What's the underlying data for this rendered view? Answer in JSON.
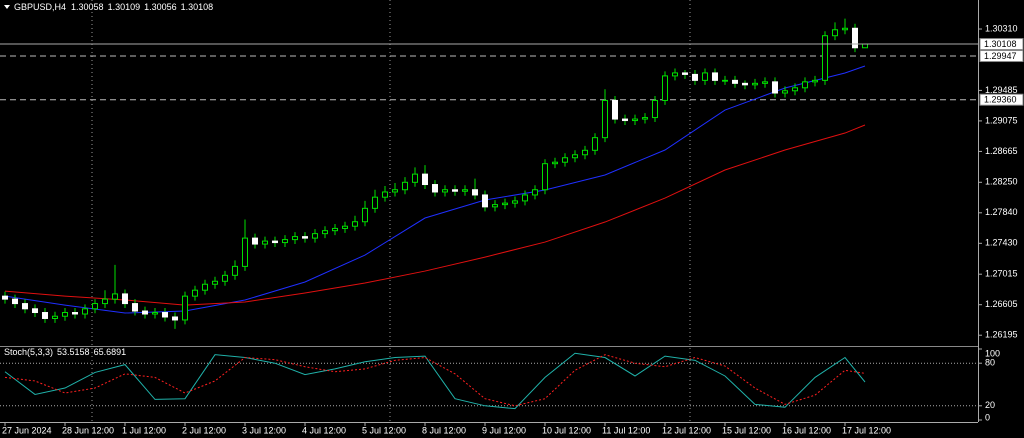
{
  "chart_data": [
    {
      "type": "candlestick",
      "symbol": "GBPUSD,H4",
      "categories": [
        "27 Jun 2024",
        null,
        null,
        null,
        null,
        null,
        "28 Jun 12:00",
        null,
        null,
        null,
        null,
        null,
        "1 Jul 12:00",
        null,
        null,
        null,
        null,
        null,
        "2 Jul 12:00",
        null,
        null,
        null,
        null,
        null,
        "3 Jul 12:00",
        null,
        null,
        null,
        null,
        null,
        "4 Jul 12:00",
        null,
        null,
        null,
        null,
        null,
        "5 Jul 12:00",
        null,
        null,
        null,
        null,
        null,
        "8 Jul 12:00",
        null,
        null,
        null,
        null,
        null,
        "9 Jul 12:00",
        null,
        null,
        null,
        null,
        null,
        "10 Jul 12:00",
        null,
        null,
        null,
        null,
        null,
        "11 Jul 12:00",
        null,
        null,
        null,
        null,
        null,
        "12 Jul 12:00",
        null,
        null,
        null,
        null,
        null,
        "15 Jul 12:00",
        null,
        null,
        null,
        null,
        null,
        "16 Jul 12:00",
        null,
        null,
        null,
        null,
        null,
        "17 Jul 12:00",
        null,
        null
      ],
      "open": [
        1.2672,
        1.2668,
        1.2662,
        1.2655,
        1.265,
        1.2642,
        1.2645,
        1.265,
        1.2648,
        1.2655,
        1.2662,
        1.2668,
        1.2675,
        1.2662,
        1.2652,
        1.2648,
        1.265,
        1.2644,
        1.264,
        1.2672,
        1.268,
        1.2688,
        1.2692,
        1.27,
        1.2712,
        1.275,
        1.2742,
        1.2746,
        1.2744,
        1.2748,
        1.2752,
        1.275,
        1.2756,
        1.276,
        1.2763,
        1.2766,
        1.2772,
        1.279,
        1.2805,
        1.2812,
        1.2815,
        1.2825,
        1.2836,
        1.2822,
        1.2812,
        1.2815,
        1.2813,
        1.2815,
        1.2808,
        1.2792,
        1.2795,
        1.2797,
        1.28,
        1.2808,
        1.2815,
        1.285,
        1.2852,
        1.2858,
        1.2862,
        1.2868,
        1.2885,
        1.2935,
        1.291,
        1.2908,
        1.291,
        1.2912,
        1.2935,
        1.2968,
        1.2972,
        1.297,
        1.2962,
        1.2972,
        1.2962,
        1.2962,
        1.2958,
        1.2956,
        1.2958,
        1.296,
        1.2945,
        1.2948,
        1.2952,
        1.296,
        1.2962,
        1.3022,
        1.303,
        1.3032,
        1.30058
      ],
      "high": [
        1.2678,
        1.2674,
        1.2668,
        1.2661,
        1.2656,
        1.2651,
        1.2656,
        1.2656,
        1.2661,
        1.2668,
        1.268,
        1.2714,
        1.2681,
        1.2668,
        1.2658,
        1.2656,
        1.2656,
        1.265,
        1.2678,
        1.2686,
        1.2694,
        1.2698,
        1.2706,
        1.272,
        1.2775,
        1.2756,
        1.2752,
        1.2752,
        1.2754,
        1.2758,
        1.2758,
        1.2762,
        1.2766,
        1.2769,
        1.2772,
        1.278,
        1.28,
        1.2815,
        1.282,
        1.2824,
        1.2832,
        1.2845,
        1.2848,
        1.2828,
        1.2821,
        1.2821,
        1.2821,
        1.283,
        1.2814,
        1.2801,
        1.2803,
        1.2806,
        1.2814,
        1.2821,
        1.2856,
        1.2858,
        1.2864,
        1.2868,
        1.2874,
        1.2891,
        1.295,
        1.2941,
        1.2916,
        1.2916,
        1.2918,
        1.2941,
        1.2974,
        1.2978,
        1.2976,
        1.2976,
        1.2978,
        1.2978,
        1.2968,
        1.2968,
        1.2962,
        1.2964,
        1.2966,
        1.2966,
        1.2954,
        1.2958,
        1.2966,
        1.2968,
        1.3028,
        1.304,
        1.3045,
        1.3038,
        1.30109
      ],
      "low": [
        1.2662,
        1.2656,
        1.2649,
        1.2644,
        1.2636,
        1.2636,
        1.2639,
        1.2642,
        1.2642,
        1.2649,
        1.2656,
        1.2662,
        1.2656,
        1.2646,
        1.2642,
        1.2642,
        1.2638,
        1.2628,
        1.2634,
        1.2666,
        1.2674,
        1.2682,
        1.2686,
        1.2694,
        1.2706,
        1.2736,
        1.2736,
        1.2738,
        1.2738,
        1.2742,
        1.2744,
        1.2744,
        1.275,
        1.2754,
        1.2757,
        1.276,
        1.2766,
        1.2784,
        1.2799,
        1.2806,
        1.2809,
        1.2819,
        1.2816,
        1.2806,
        1.2806,
        1.2807,
        1.2807,
        1.2802,
        1.2786,
        1.2786,
        1.2789,
        1.2791,
        1.2794,
        1.2802,
        1.2809,
        1.2844,
        1.2846,
        1.2852,
        1.2856,
        1.2862,
        1.2879,
        1.2904,
        1.2902,
        1.2902,
        1.2904,
        1.2906,
        1.2929,
        1.2962,
        1.2964,
        1.2956,
        1.2956,
        1.2956,
        1.2956,
        1.2952,
        1.295,
        1.295,
        1.2952,
        1.2939,
        1.2939,
        1.2942,
        1.2946,
        1.2954,
        1.2956,
        1.3016,
        1.3024,
        1.3,
        1.30056
      ],
      "close": [
        1.2668,
        1.2662,
        1.2655,
        1.265,
        1.2642,
        1.2645,
        1.265,
        1.2648,
        1.2655,
        1.2662,
        1.2668,
        1.2675,
        1.2662,
        1.2652,
        1.2648,
        1.265,
        1.2644,
        1.264,
        1.2672,
        1.268,
        1.2688,
        1.2692,
        1.27,
        1.2712,
        1.275,
        1.2742,
        1.2746,
        1.2744,
        1.2748,
        1.2752,
        1.275,
        1.2756,
        1.276,
        1.2763,
        1.2766,
        1.2772,
        1.279,
        1.2805,
        1.2812,
        1.2815,
        1.2825,
        1.2836,
        1.2822,
        1.2812,
        1.2815,
        1.2813,
        1.2815,
        1.2808,
        1.2792,
        1.2795,
        1.2797,
        1.28,
        1.2808,
        1.2815,
        1.285,
        1.2852,
        1.2858,
        1.2862,
        1.2868,
        1.2885,
        1.2935,
        1.291,
        1.2908,
        1.291,
        1.2912,
        1.2935,
        1.2968,
        1.2972,
        1.297,
        1.2962,
        1.2972,
        1.2962,
        1.2962,
        1.2958,
        1.2956,
        1.2958,
        1.296,
        1.2945,
        1.2948,
        1.2952,
        1.296,
        1.2962,
        1.3022,
        1.303,
        1.3032,
        1.30058,
        1.30108
      ],
      "up_color": "#00e000",
      "down_color": "#ffffff",
      "series": [
        {
          "color": "#1f2fff",
          "x": [
            0,
            6,
            12,
            18,
            24,
            30,
            36,
            42,
            48,
            54,
            60,
            66,
            72,
            78,
            84,
            86
          ],
          "values": [
            1.26721,
            1.266,
            1.26493,
            1.2652,
            1.26668,
            1.2691,
            1.27272,
            1.2777,
            1.28012,
            1.28146,
            1.28348,
            1.28684,
            1.29221,
            1.29517,
            1.29719,
            1.29813
          ]
        },
        {
          "color": "#e01010",
          "x": [
            0,
            6,
            12,
            18,
            24,
            30,
            36,
            42,
            48,
            54,
            60,
            66,
            72,
            78,
            84,
            86
          ],
          "values": [
            1.26788,
            1.26721,
            1.26668,
            1.266,
            1.26641,
            1.26762,
            1.26896,
            1.27057,
            1.27245,
            1.27447,
            1.27716,
            1.28038,
            1.28415,
            1.28684,
            1.28912,
            1.2902
          ]
        }
      ],
      "hlines": [
        1.29947,
        {
          "value": 1.2936,
          "label": "1.29360"
        }
      ],
      "ylim": [
        1.2605,
        1.307
      ],
      "yticks": [
        {
          "value": 1.3031,
          "label": "1.30310"
        },
        1.29485,
        1.29075,
        1.28665,
        {
          "value": 1.2825,
          "label": "1.28250"
        },
        {
          "value": 1.2784,
          "label": "1.27840"
        },
        {
          "value": 1.2743,
          "label": "1.27430"
        },
        1.27015,
        1.26605,
        1.26195
      ]
    },
    {
      "type": "line",
      "title": "Stoch(5,3,3)",
      "series": [
        {
          "color": "#20b2aa",
          "x": [
            0,
            3,
            6,
            9,
            12,
            15,
            18,
            21,
            24,
            27,
            30,
            33,
            36,
            39,
            42,
            45,
            48,
            51,
            54,
            57,
            60,
            63,
            66,
            69,
            72,
            75,
            78,
            81,
            84,
            86
          ],
          "values": [
            68,
            36,
            45,
            67,
            78,
            29,
            30,
            92,
            88,
            80,
            64,
            72,
            82,
            88,
            90,
            30,
            20,
            16,
            60,
            94,
            88,
            62,
            90,
            84,
            62,
            22,
            18,
            60,
            88,
            53.5158
          ]
        },
        {
          "color": "#ff2020",
          "dash": "dotted",
          "x": [
            0,
            3,
            6,
            9,
            12,
            15,
            18,
            21,
            24,
            27,
            30,
            33,
            36,
            39,
            42,
            45,
            48,
            51,
            54,
            57,
            60,
            63,
            66,
            69,
            72,
            75,
            78,
            81,
            84,
            86
          ],
          "values": [
            60,
            55,
            38,
            45,
            65,
            60,
            38,
            55,
            88,
            85,
            75,
            68,
            72,
            84,
            88,
            65,
            30,
            20,
            30,
            70,
            92,
            80,
            75,
            88,
            76,
            45,
            22,
            35,
            70,
            65.6891
          ]
        }
      ],
      "levels": [
        80,
        20
      ],
      "ylim": [
        0,
        100
      ],
      "yticks": [
        100,
        80,
        20,
        0
      ]
    }
  ]
}
